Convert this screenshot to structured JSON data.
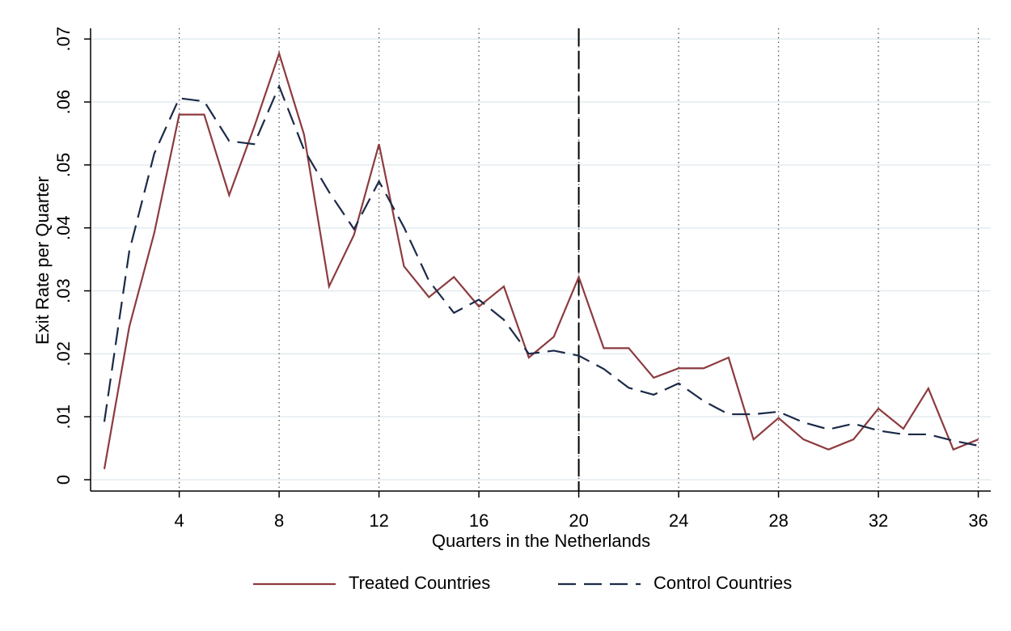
{
  "chart_data": {
    "type": "line",
    "x_label": "Quarters in the Netherlands",
    "y_label": "Exit Rate per Quarter",
    "x": [
      1,
      2,
      3,
      4,
      5,
      6,
      7,
      8,
      9,
      10,
      11,
      12,
      13,
      14,
      15,
      16,
      17,
      18,
      19,
      20,
      21,
      22,
      23,
      24,
      25,
      26,
      27,
      28,
      29,
      30,
      31,
      32,
      33,
      34,
      35,
      36
    ],
    "series": [
      {
        "name": "Treated Countries",
        "color": "#8c3b3f",
        "line_style": "solid",
        "values": [
          0.0017,
          0.0243,
          0.0392,
          0.058,
          0.058,
          0.0452,
          0.056,
          0.0677,
          0.0548,
          0.0307,
          0.0389,
          0.0533,
          0.0339,
          0.029,
          0.0322,
          0.0275,
          0.0307,
          0.0194,
          0.0227,
          0.0322,
          0.0209,
          0.0209,
          0.0162,
          0.0177,
          0.0177,
          0.0194,
          0.0064,
          0.0098,
          0.0064,
          0.0048,
          0.0064,
          0.0113,
          0.0081,
          0.0145,
          0.0048,
          0.0064
        ]
      },
      {
        "name": "Control Countries",
        "color": "#1b2a48",
        "line_style": "dashed",
        "values": [
          0.0092,
          0.0363,
          0.0518,
          0.0606,
          0.0601,
          0.0538,
          0.0533,
          0.0625,
          0.0524,
          0.0457,
          0.0398,
          0.0474,
          0.0401,
          0.0316,
          0.0265,
          0.0286,
          0.0254,
          0.02,
          0.0205,
          0.0197,
          0.0176,
          0.0146,
          0.0135,
          0.0153,
          0.0125,
          0.0104,
          0.0104,
          0.0108,
          0.0091,
          0.008,
          0.0089,
          0.0078,
          0.0072,
          0.0072,
          0.0062,
          0.0054
        ]
      }
    ],
    "xlim": [
      0.45,
      36.5
    ],
    "ylim": [
      -0.0018,
      0.0717
    ],
    "xticks": [
      4,
      8,
      12,
      16,
      20,
      24,
      28,
      32,
      36
    ],
    "yticks": [
      0,
      {
        "value": 0.01,
        "label": ".01"
      },
      {
        "value": 0.02,
        "label": ".02"
      },
      {
        "value": 0.03,
        "label": ".03"
      },
      {
        "value": 0.04,
        "label": ".04"
      },
      {
        "value": 0.05,
        "label": ".05"
      },
      {
        "value": 0.06,
        "label": ".06"
      },
      {
        "value": 0.07,
        "label": ".07"
      }
    ],
    "grid": true,
    "reference_line_x": 20,
    "legend_position": "bottom"
  }
}
